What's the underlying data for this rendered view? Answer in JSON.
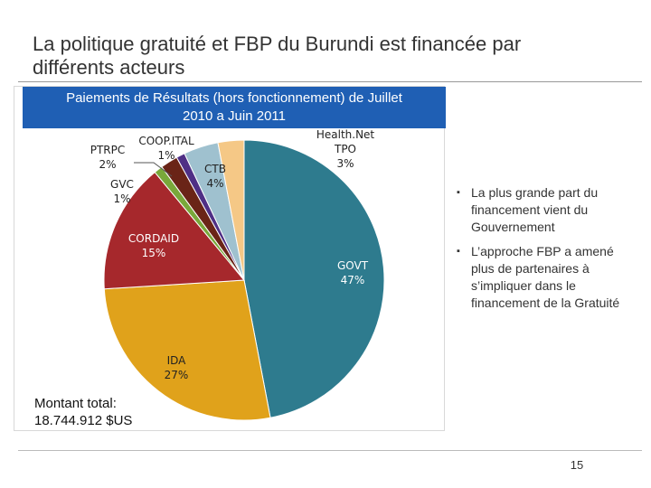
{
  "slide": {
    "title_line1": "La politique gratuité et FBP du Burundi est financée par",
    "title_line2": "différents acteurs",
    "chart_header_line1": "Paiements de Résultats (hors fonctionnement) de Juillet",
    "chart_header_line2": "2010 a Juin 2011",
    "total_label": "Montant total:",
    "total_value": "18.744.912 $US",
    "bullets": [
      "La plus grande part du financement vient du Gouvernement",
      "L’approche FBP a amené plus de partenaires à s’impliquer dans le financement de la Gratuité"
    ],
    "page_number": "15"
  },
  "chart_data": {
    "type": "pie",
    "title": "Paiements de Résultats (hors fonctionnement) de Juillet 2010 a Juin 2011",
    "unit": "%",
    "slices": [
      {
        "label": "GOVT",
        "value": 47,
        "color": "#2e7b8e"
      },
      {
        "label": "IDA",
        "value": 27,
        "color": "#e0a21b"
      },
      {
        "label": "CORDAID",
        "value": 15,
        "color": "#a6282c"
      },
      {
        "label": "GVC",
        "value": 1,
        "color": "#79a83a"
      },
      {
        "label": "PTRPC",
        "value": 2,
        "color": "#6a2417"
      },
      {
        "label": "COOP.ITAL",
        "value": 1,
        "color": "#4f2f85"
      },
      {
        "label": "CTB",
        "value": 4,
        "color": "#9fc1cf"
      },
      {
        "label": "Health.Net TPO",
        "value": 3,
        "color": "#f5c886"
      }
    ]
  }
}
